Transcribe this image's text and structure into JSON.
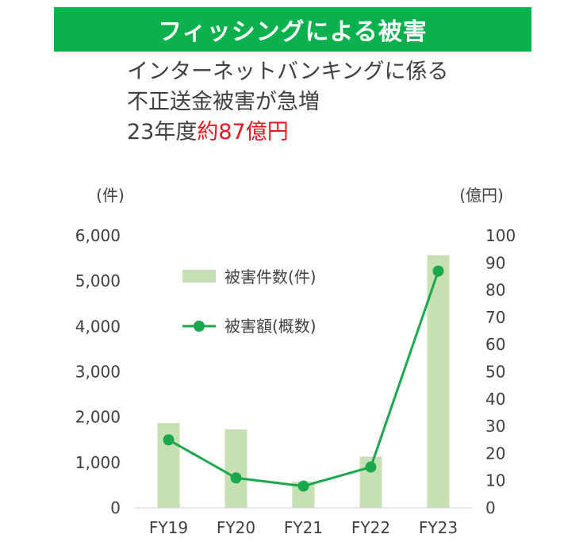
{
  "banner": {
    "title": "フィッシングによる被害"
  },
  "headline": {
    "line1": "インターネットバンキングに係る",
    "line2": "不正送金被害が急増",
    "line3_prefix": "23年度",
    "line3_highlight": "約87億円"
  },
  "colors": {
    "banner": "#0bb14c",
    "bar": "#c6e0b4",
    "line": "#1aa84a",
    "highlight": "#e8151c",
    "text": "#3f3f3f"
  },
  "chart_data": {
    "type": "bar+line",
    "categories": [
      "FY19",
      "FY20",
      "FY21",
      "FY22",
      "FY23"
    ],
    "series": [
      {
        "name": "被害件数(件)",
        "type": "bar",
        "axis": "left",
        "values": [
          1870,
          1730,
          580,
          1130,
          5570
        ]
      },
      {
        "name": "被害額(概数)",
        "type": "line",
        "axis": "right",
        "values": [
          25,
          11,
          8,
          15,
          87
        ]
      }
    ],
    "left_axis": {
      "unit_label": "(件)",
      "ylim": [
        0,
        6000
      ],
      "ticks": [
        "0",
        "1,000",
        "2,000",
        "3,000",
        "4,000",
        "5,000",
        "6,000"
      ]
    },
    "right_axis": {
      "unit_label": "(億円)",
      "ylim": [
        0,
        100
      ],
      "ticks": [
        "0",
        "10",
        "20",
        "30",
        "40",
        "50",
        "60",
        "70",
        "80",
        "90",
        "100"
      ]
    },
    "legend_position": "upper-left inside plot",
    "grid": false
  }
}
